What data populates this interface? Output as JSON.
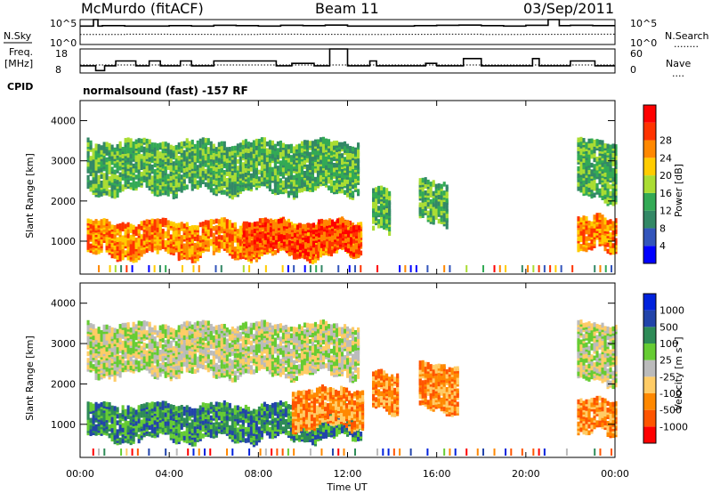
{
  "header": {
    "station": "McMurdo (fitACF)",
    "beam": "Beam 11",
    "date": "03/Sep/2011"
  },
  "side_labels": {
    "nsky": "N.Sky",
    "nsearch": "N.Search",
    "freq": "Freq.",
    "freq_unit": "[MHz]",
    "nave": "Nave",
    "cpid": "CPID",
    "cpid_text": "normalsound (fast) -157 RF",
    "nsearch_dots": "........",
    "nave_dots": "....",
    "noise_top": "10^5",
    "noise_bottom": "10^0",
    "freq_top": "18",
    "freq_bottom": "8",
    "nave_top": "60",
    "nave_bottom": "0"
  },
  "colors": {
    "power": [
      "#0000ff",
      "#3355bb",
      "#338866",
      "#33aa55",
      "#aadd33",
      "#ffcc00",
      "#ff8800",
      "#ff3300",
      "#ff0000"
    ],
    "velocity": [
      "#ff0000",
      "#ff5500",
      "#ff8800",
      "#ffcc66",
      "#bbbbbb",
      "#66cc33",
      "#2e8b57",
      "#2244aa",
      "#0022dd"
    ]
  },
  "chart_data": [
    {
      "type": "line",
      "panel": "noise",
      "series": [
        {
          "name": "N.Sky",
          "x": [
            0,
            0.6,
            0.8,
            1,
            2,
            3,
            4,
            5,
            6,
            7,
            8,
            9,
            10,
            11,
            12,
            13,
            14,
            15,
            16,
            17,
            18,
            19,
            20,
            21,
            21.5,
            22,
            23,
            24
          ],
          "values": [
            5000,
            100000,
            5000,
            6000,
            5000,
            5000,
            6000,
            5000,
            7000,
            6000,
            5000,
            7000,
            6000,
            8000,
            5000,
            5000,
            5000,
            6000,
            7000,
            8000,
            6000,
            5000,
            7000,
            100000,
            6000,
            7000,
            6000,
            6000
          ]
        },
        {
          "name": "N.Search",
          "x": [
            0,
            2,
            4,
            6,
            8,
            10,
            12,
            14,
            16,
            18,
            20,
            22,
            24
          ],
          "values": [
            100,
            120,
            110,
            100,
            120,
            110,
            100,
            110,
            120,
            100,
            110,
            120,
            110
          ]
        }
      ],
      "ylim": [
        1,
        100000
      ],
      "scale": "log"
    },
    {
      "type": "line",
      "panel": "frequency",
      "series": [
        {
          "name": "Freq.",
          "x": [
            0,
            0.7,
            1.1,
            1.6,
            2.5,
            3.1,
            3.6,
            4.5,
            5.0,
            6.0,
            8.8,
            9.5,
            10.5,
            11.2,
            12.0,
            13.0,
            13.3,
            15.5,
            16.0,
            17.2,
            18.0,
            20.3,
            20.6,
            21.0,
            22.0,
            23.1,
            24
          ],
          "values": [
            11,
            9,
            11,
            13,
            11,
            13,
            11,
            13,
            11,
            13,
            11,
            12,
            11,
            18,
            11,
            13,
            11,
            12,
            11,
            14,
            11,
            14,
            11,
            11,
            13,
            11,
            11
          ]
        },
        {
          "name": "Nave",
          "x": [
            0,
            24
          ],
          "values": [
            20,
            20
          ]
        }
      ],
      "ylim": [
        8,
        18
      ],
      "y2lim": [
        0,
        60
      ]
    },
    {
      "type": "heatmap",
      "panel": "power",
      "xlabel": "",
      "ylabel": "Slant Range [km]",
      "ylim": [
        180,
        4500
      ],
      "xlim": [
        0,
        24
      ],
      "x_ticks": [
        0,
        4,
        8,
        12,
        16,
        20,
        24
      ],
      "y_ticks": [
        1000,
        2000,
        3000,
        4000
      ],
      "colorbar_label": "Power [dB]",
      "colorbar_ticks": [
        4,
        8,
        12,
        16,
        20,
        24,
        28
      ],
      "bands": [
        {
          "x": [
            0.3,
            12.6
          ],
          "r": [
            600,
            1400
          ],
          "level": "high"
        },
        {
          "x": [
            7.3,
            12.5
          ],
          "r": [
            700,
            1400
          ],
          "level": "very high"
        },
        {
          "x": [
            0.3,
            12.5
          ],
          "r": [
            2200,
            3400
          ],
          "level": "medium"
        },
        {
          "x": [
            13.1,
            13.9
          ],
          "r": [
            1200,
            2200
          ],
          "level": "medium"
        },
        {
          "x": [
            15.2,
            16.5
          ],
          "r": [
            1400,
            2400
          ],
          "level": "medium"
        },
        {
          "x": [
            22.3,
            24.0
          ],
          "r": [
            700,
            1500
          ],
          "level": "high"
        },
        {
          "x": [
            22.3,
            24.0
          ],
          "r": [
            2000,
            3400
          ],
          "level": "medium"
        }
      ]
    },
    {
      "type": "heatmap",
      "panel": "velocity",
      "xlabel": "Time UT",
      "ylabel": "Slant Range [km]",
      "ylim": [
        180,
        4500
      ],
      "xlim": [
        0,
        24
      ],
      "x_ticks": [
        0,
        4,
        8,
        12,
        16,
        20,
        24
      ],
      "x_tick_labels": [
        "00:00",
        "04:00",
        "08:00",
        "12:00",
        "16:00",
        "20:00",
        "00:00"
      ],
      "y_ticks": [
        1000,
        2000,
        3000,
        4000
      ],
      "colorbar_label": "Velocity [m s^-1]",
      "colorbar_ticks": [
        -1000,
        -500,
        -100,
        -25,
        25,
        100,
        500,
        1000
      ],
      "bands": [
        {
          "x": [
            0.3,
            12.6
          ],
          "r": [
            600,
            1400
          ],
          "level": "green"
        },
        {
          "x": [
            9.5,
            12.7
          ],
          "r": [
            900,
            1800
          ],
          "level": "orange"
        },
        {
          "x": [
            0.3,
            12.5
          ],
          "r": [
            2200,
            3400
          ],
          "level": "grey"
        },
        {
          "x": [
            13.1,
            14.2
          ],
          "r": [
            1300,
            2200
          ],
          "level": "orange"
        },
        {
          "x": [
            15.2,
            17.0
          ],
          "r": [
            1300,
            2400
          ],
          "level": "orange"
        },
        {
          "x": [
            22.3,
            24.0
          ],
          "r": [
            700,
            1500
          ],
          "level": "orange"
        },
        {
          "x": [
            22.3,
            24.0
          ],
          "r": [
            2000,
            3400
          ],
          "level": "grey"
        }
      ]
    }
  ]
}
